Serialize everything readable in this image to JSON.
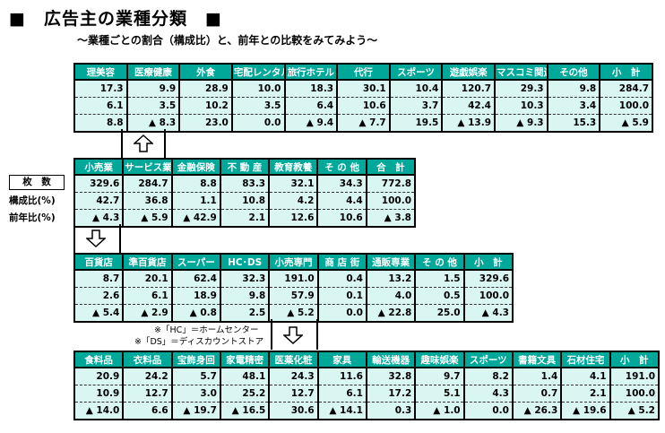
{
  "title": "■　広告主の業種分類　■",
  "subtitle": "～業種ごとの割合（構成比）と、前年との比較をみてみよう～",
  "row_labels": {
    "header": "枚　数",
    "ratio": "構成比(%)",
    "yoy": "前年比(%)"
  },
  "notes": {
    "hc": "※「HC」＝ホームセンター",
    "ds": "※「DS」＝ディスカウントストア"
  },
  "top_table": {
    "headers": [
      "理美容",
      "医療健康",
      "外食",
      "宅配レンタル",
      "旅行ホテル",
      "代行",
      "スポーツ",
      "遊戯娯楽",
      "マスコミ関連",
      "その他",
      "小　計"
    ],
    "rows": [
      [
        "17.3",
        "9.9",
        "28.9",
        "10.0",
        "18.3",
        "30.1",
        "10.4",
        "120.7",
        "29.3",
        "9.8",
        "284.7"
      ],
      [
        "6.1",
        "3.5",
        "10.2",
        "3.5",
        "6.4",
        "10.6",
        "3.7",
        "42.4",
        "10.3",
        "3.4",
        "100.0"
      ],
      [
        "8.8",
        "▲ 8.3",
        "23.0",
        "0.0",
        "▲ 9.4",
        "▲ 7.7",
        "19.5",
        "▲ 13.9",
        "▲ 9.3",
        "15.3",
        "▲ 5.9"
      ]
    ]
  },
  "mid_table": {
    "headers": [
      "小売業",
      "サービス業",
      "金融保険",
      "不 動 産",
      "教育教養",
      "そ の 他",
      "合　計"
    ],
    "rows": [
      [
        "329.6",
        "284.7",
        "8.8",
        "83.3",
        "32.1",
        "34.3",
        "772.8"
      ],
      [
        "42.7",
        "36.8",
        "1.1",
        "10.8",
        "4.2",
        "4.4",
        "100.0"
      ],
      [
        "▲ 4.3",
        "▲ 5.9",
        "▲ 42.9",
        "2.1",
        "12.6",
        "10.6",
        "▲ 3.8"
      ]
    ]
  },
  "retail_table": {
    "headers": [
      "百貨店",
      "準百貨店",
      "スーパー",
      "HC･DS",
      "小売専門",
      "商 店 街",
      "通販専業",
      "そ の 他",
      "小　計"
    ],
    "rows": [
      [
        "8.7",
        "20.1",
        "62.4",
        "32.3",
        "191.0",
        "0.4",
        "13.2",
        "1.5",
        "329.6"
      ],
      [
        "2.6",
        "6.1",
        "18.9",
        "9.8",
        "57.9",
        "0.1",
        "4.0",
        "0.5",
        "100.0"
      ],
      [
        "▲ 5.4",
        "▲ 2.9",
        "▲ 0.8",
        "2.5",
        "▲ 5.2",
        "0.0",
        "▲ 22.8",
        "25.0",
        "▲ 4.3"
      ]
    ]
  },
  "specialty_table": {
    "headers": [
      "食料品",
      "衣料品",
      "宝飾身回",
      "家電精密",
      "医薬化粧",
      "家具",
      "輸送機器",
      "趣味娯楽",
      "スポーツ",
      "書籍文具",
      "石材住宅",
      "小　計"
    ],
    "rows": [
      [
        "20.9",
        "24.2",
        "5.7",
        "48.1",
        "24.3",
        "11.6",
        "32.8",
        "9.7",
        "8.2",
        "1.4",
        "4.1",
        "191.0"
      ],
      [
        "10.9",
        "12.7",
        "3.0",
        "25.2",
        "12.7",
        "6.1",
        "17.2",
        "5.1",
        "4.3",
        "0.7",
        "2.1",
        "100.0"
      ],
      [
        "▲ 14.0",
        "6.6",
        "▲ 19.7",
        "▲ 16.5",
        "30.6",
        "▲ 14.1",
        "0.3",
        "▲ 1.0",
        "0.0",
        "▲ 26.3",
        "▲ 19.6",
        "▲ 5.2"
      ]
    ]
  },
  "colors": {
    "header_bg": "#00a89a",
    "cell_bg": "#d9f6f3"
  }
}
